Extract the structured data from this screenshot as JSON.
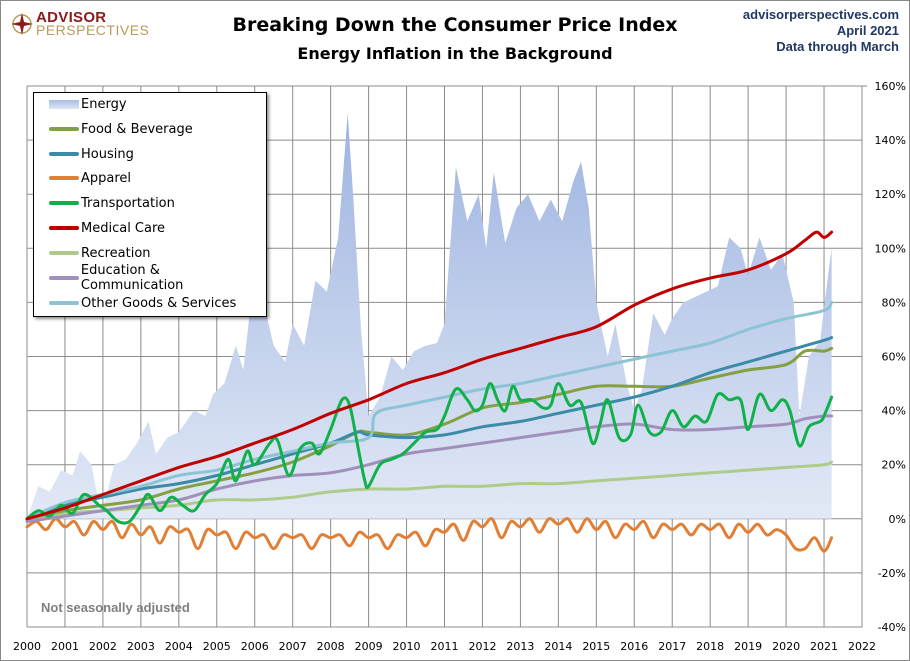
{
  "header": {
    "logo_top": "ADVISOR",
    "logo_bottom": "PERSPECTIVES",
    "title": "Breaking Down the Consumer Price Index",
    "subtitle": "Energy Inflation in the Background",
    "source_lines": [
      "advisorperspectives.com",
      "April 2021",
      "Data through March"
    ]
  },
  "note": "Not seasonally adjusted",
  "colors": {
    "energy": "#a9bde3",
    "food": "#84a042",
    "housing": "#3a8aa8",
    "apparel": "#e07f35",
    "transportation": "#10b04a",
    "medical": "#c00000",
    "recreation": "#aecb8a",
    "education": "#a08fbb",
    "other": "#8cc4d6",
    "grid": "#8c8c8c"
  },
  "chart_data": {
    "type": "line",
    "title": "Breaking Down the Consumer Price Index",
    "subtitle": "Energy Inflation in the Background",
    "xlabel": "",
    "ylabel": "",
    "xlim": [
      2000,
      2022
    ],
    "ylim": [
      -40,
      160
    ],
    "x_ticks": [
      "2000",
      "2001",
      "2002",
      "2003",
      "2004",
      "2005",
      "2006",
      "2007",
      "2008",
      "2009",
      "2010",
      "2011",
      "2012",
      "2013",
      "2014",
      "2015",
      "2016",
      "2017",
      "2018",
      "2019",
      "2020",
      "2021",
      "2022"
    ],
    "y_ticks": [
      "160%",
      "140%",
      "120%",
      "100%",
      "80%",
      "60%",
      "40%",
      "20%",
      "0%",
      "-20%",
      "-40%"
    ],
    "y_tick_values": [
      160,
      140,
      120,
      100,
      80,
      60,
      40,
      20,
      0,
      -20,
      -40
    ],
    "grid": true,
    "legend_position": "top-left",
    "series": [
      {
        "name": "Energy",
        "key": "energy",
        "kind": "area",
        "x": [
          2000,
          2000.3,
          2000.6,
          2000.9,
          2001.2,
          2001.4,
          2001.7,
          2001.9,
          2002.0,
          2002.3,
          2002.6,
          2002.9,
          2003.2,
          2003.4,
          2003.7,
          2004.0,
          2004.4,
          2004.7,
          2004.9,
          2005.2,
          2005.5,
          2005.7,
          2005.9,
          2006.2,
          2006.5,
          2006.8,
          2007.0,
          2007.3,
          2007.6,
          2007.9,
          2008.2,
          2008.45,
          2008.6,
          2008.8,
          2009.0,
          2009.3,
          2009.6,
          2009.9,
          2010.2,
          2010.5,
          2010.8,
          2011.0,
          2011.3,
          2011.6,
          2011.9,
          2012.1,
          2012.3,
          2012.6,
          2012.9,
          2013.2,
          2013.5,
          2013.8,
          2014.1,
          2014.4,
          2014.6,
          2014.8,
          2015.0,
          2015.3,
          2015.5,
          2015.8,
          2016.0,
          2016.2,
          2016.5,
          2016.8,
          2017.0,
          2017.3,
          2017.6,
          2017.9,
          2018.2,
          2018.5,
          2018.8,
          2019.0,
          2019.3,
          2019.6,
          2019.9,
          2020.2,
          2020.35,
          2020.6,
          2020.9,
          2021.0,
          2021.2
        ],
        "y": [
          0,
          12,
          10,
          18,
          16,
          25,
          20,
          5,
          4,
          20,
          22,
          28,
          36,
          24,
          30,
          32,
          40,
          38,
          46,
          50,
          64,
          55,
          80,
          82,
          64,
          58,
          72,
          64,
          88,
          84,
          104,
          150,
          118,
          70,
          38,
          45,
          60,
          55,
          62,
          64,
          65,
          72,
          130,
          110,
          120,
          100,
          128,
          102,
          115,
          120,
          110,
          118,
          110,
          125,
          132,
          115,
          80,
          60,
          72,
          50,
          40,
          48,
          76,
          68,
          74,
          80,
          82,
          84,
          86,
          104,
          100,
          90,
          104,
          92,
          98,
          80,
          38,
          60,
          66,
          78,
          100
        ]
      },
      {
        "name": "Food & Beverage",
        "key": "food",
        "kind": "line",
        "x": [
          2000,
          2001,
          2002,
          2003,
          2004,
          2005,
          2006,
          2007,
          2008,
          2008.7,
          2009,
          2010,
          2011,
          2012,
          2013,
          2014,
          2015,
          2016,
          2017,
          2018,
          2019,
          2020,
          2020.5,
          2021,
          2021.2
        ],
        "y": [
          0,
          3,
          5,
          7,
          11,
          14,
          17,
          21,
          27,
          32,
          32,
          31,
          35,
          41,
          43,
          46,
          49,
          49,
          49,
          52,
          55,
          57,
          62,
          62,
          63
        ]
      },
      {
        "name": "Housing",
        "key": "housing",
        "kind": "line",
        "x": [
          2000,
          2001,
          2002,
          2003,
          2004,
          2005,
          2006,
          2007,
          2008,
          2008.7,
          2009,
          2010,
          2011,
          2012,
          2013,
          2014,
          2015,
          2016,
          2017,
          2018,
          2019,
          2020,
          2021,
          2021.2
        ],
        "y": [
          0,
          5,
          8,
          11,
          13,
          16,
          20,
          24,
          28,
          32,
          31,
          30,
          31,
          34,
          36,
          39,
          42,
          45,
          49,
          54,
          58,
          62,
          66,
          67
        ]
      },
      {
        "name": "Apparel",
        "key": "apparel",
        "kind": "line",
        "x": [
          2000,
          2000.25,
          2000.5,
          2000.75,
          2001,
          2001.25,
          2001.5,
          2001.75,
          2002,
          2002.25,
          2002.5,
          2002.75,
          2003,
          2003.25,
          2003.5,
          2003.75,
          2004,
          2004.25,
          2004.5,
          2004.75,
          2005,
          2005.25,
          2005.5,
          2005.75,
          2006,
          2006.25,
          2006.5,
          2006.75,
          2007,
          2007.25,
          2007.5,
          2007.75,
          2008,
          2008.25,
          2008.5,
          2008.75,
          2009,
          2009.25,
          2009.5,
          2009.75,
          2010,
          2010.25,
          2010.5,
          2010.75,
          2011,
          2011.25,
          2011.5,
          2011.75,
          2012,
          2012.25,
          2012.5,
          2012.75,
          2013,
          2013.25,
          2013.5,
          2013.75,
          2014,
          2014.25,
          2014.5,
          2014.75,
          2015,
          2015.25,
          2015.5,
          2015.75,
          2016,
          2016.25,
          2016.5,
          2016.75,
          2017,
          2017.25,
          2017.5,
          2017.75,
          2018,
          2018.25,
          2018.5,
          2018.75,
          2019,
          2019.25,
          2019.5,
          2019.75,
          2020,
          2020.25,
          2020.5,
          2020.75,
          2021,
          2021.2
        ],
        "y": [
          -3,
          -1,
          -4,
          0,
          -3,
          -1,
          -6,
          -1,
          -4,
          -1,
          -7,
          -2,
          -6,
          -3,
          -9,
          -3,
          -5,
          -4,
          -11,
          -4,
          -6,
          -5,
          -11,
          -5,
          -7,
          -6,
          -11,
          -6,
          -7,
          -6,
          -11,
          -6,
          -7,
          -6,
          -10,
          -5,
          -7,
          -6,
          -11,
          -6,
          -7,
          -5,
          -10,
          -4,
          -5,
          -2,
          -8,
          -1,
          -3,
          0,
          -7,
          -1,
          -3,
          0,
          -5,
          0,
          -2,
          0,
          -5,
          0,
          -4,
          -1,
          -7,
          -2,
          -4,
          -1,
          -7,
          -2,
          -4,
          -2,
          -6,
          -2,
          -4,
          -2,
          -7,
          -2,
          -5,
          -2,
          -6,
          -4,
          -6,
          -11,
          -11,
          -7,
          -12,
          -7
        ]
      },
      {
        "name": "Transportation",
        "key": "transportation",
        "kind": "line",
        "x": [
          2000,
          2000.3,
          2000.6,
          2000.9,
          2001.2,
          2001.5,
          2001.9,
          2002.1,
          2002.4,
          2002.7,
          2003.0,
          2003.2,
          2003.5,
          2003.8,
          2004.1,
          2004.4,
          2004.7,
          2005.0,
          2005.3,
          2005.5,
          2005.8,
          2006.0,
          2006.4,
          2006.6,
          2006.9,
          2007.2,
          2007.5,
          2007.7,
          2008.0,
          2008.3,
          2008.5,
          2008.7,
          2008.9,
          2009.0,
          2009.3,
          2009.6,
          2009.9,
          2010.2,
          2010.5,
          2010.8,
          2011.0,
          2011.3,
          2011.6,
          2011.8,
          2012.0,
          2012.2,
          2012.4,
          2012.6,
          2012.8,
          2013.0,
          2013.3,
          2013.6,
          2013.8,
          2014.0,
          2014.3,
          2014.6,
          2014.9,
          2015.1,
          2015.3,
          2015.6,
          2015.9,
          2016.1,
          2016.4,
          2016.7,
          2017.0,
          2017.3,
          2017.6,
          2017.9,
          2018.2,
          2018.5,
          2018.8,
          2019.0,
          2019.3,
          2019.6,
          2019.9,
          2020.1,
          2020.35,
          2020.6,
          2020.9,
          2021.0,
          2021.2
        ],
        "y": [
          0,
          3,
          1,
          5,
          2,
          9,
          5,
          3,
          -1,
          -1,
          5,
          9,
          3,
          8,
          5,
          3,
          9,
          13,
          22,
          14,
          25,
          20,
          28,
          29,
          16,
          26,
          28,
          24,
          33,
          44,
          42,
          28,
          14,
          12,
          20,
          22,
          24,
          28,
          32,
          33,
          38,
          48,
          44,
          40,
          42,
          50,
          44,
          40,
          49,
          44,
          44,
          41,
          42,
          50,
          42,
          43,
          28,
          35,
          44,
          30,
          31,
          42,
          32,
          32,
          40,
          34,
          38,
          36,
          46,
          44,
          44,
          33,
          46,
          40,
          44,
          40,
          27,
          34,
          36,
          38,
          45
        ]
      },
      {
        "name": "Medical Care",
        "key": "medical",
        "kind": "line",
        "x": [
          2000,
          2001,
          2002,
          2003,
          2004,
          2005,
          2006,
          2007,
          2008,
          2009,
          2010,
          2011,
          2012,
          2013,
          2014,
          2015,
          2016,
          2017,
          2018,
          2019,
          2020,
          2020.5,
          2020.8,
          2021,
          2021.2
        ],
        "y": [
          0,
          4,
          9,
          14,
          19,
          23,
          28,
          33,
          39,
          44,
          50,
          54,
          59,
          63,
          67,
          71,
          79,
          85,
          89,
          92,
          98,
          103,
          106,
          104,
          106
        ]
      },
      {
        "name": "Recreation",
        "key": "recreation",
        "kind": "line",
        "x": [
          2000,
          2001,
          2002,
          2003,
          2004,
          2005,
          2006,
          2007,
          2008,
          2009,
          2010,
          2011,
          2012,
          2013,
          2014,
          2015,
          2016,
          2017,
          2018,
          2019,
          2020,
          2021,
          2021.2
        ],
        "y": [
          0,
          2,
          3,
          4,
          5,
          7,
          7,
          8,
          10,
          11,
          11,
          12,
          12,
          13,
          13,
          14,
          15,
          16,
          17,
          18,
          19,
          20,
          21
        ]
      },
      {
        "name": "Education & Communication",
        "key": "education",
        "kind": "line",
        "x": [
          2000,
          2001,
          2002,
          2003,
          2004,
          2005,
          2006,
          2007,
          2008,
          2009,
          2010,
          2011,
          2012,
          2013,
          2014,
          2015,
          2016,
          2017,
          2018,
          2019,
          2020,
          2020.5,
          2021,
          2021.2
        ],
        "y": [
          -1,
          1,
          3,
          5,
          7,
          11,
          14,
          16,
          17,
          20,
          24,
          26,
          28,
          30,
          32,
          34,
          35,
          33,
          33,
          34,
          35,
          37,
          38,
          38
        ]
      },
      {
        "name": "Other Goods & Services",
        "key": "other",
        "kind": "line",
        "x": [
          2000,
          2001,
          2002,
          2003,
          2004,
          2005,
          2006,
          2007,
          2008,
          2009,
          2009.2,
          2010,
          2011,
          2012,
          2013,
          2014,
          2015,
          2016,
          2017,
          2018,
          2019,
          2020,
          2021,
          2021.2
        ],
        "y": [
          0,
          6,
          9,
          12,
          16,
          18,
          22,
          25,
          28,
          30,
          39,
          42,
          45,
          48,
          50,
          53,
          56,
          59,
          62,
          65,
          70,
          74,
          77,
          80
        ]
      }
    ]
  }
}
